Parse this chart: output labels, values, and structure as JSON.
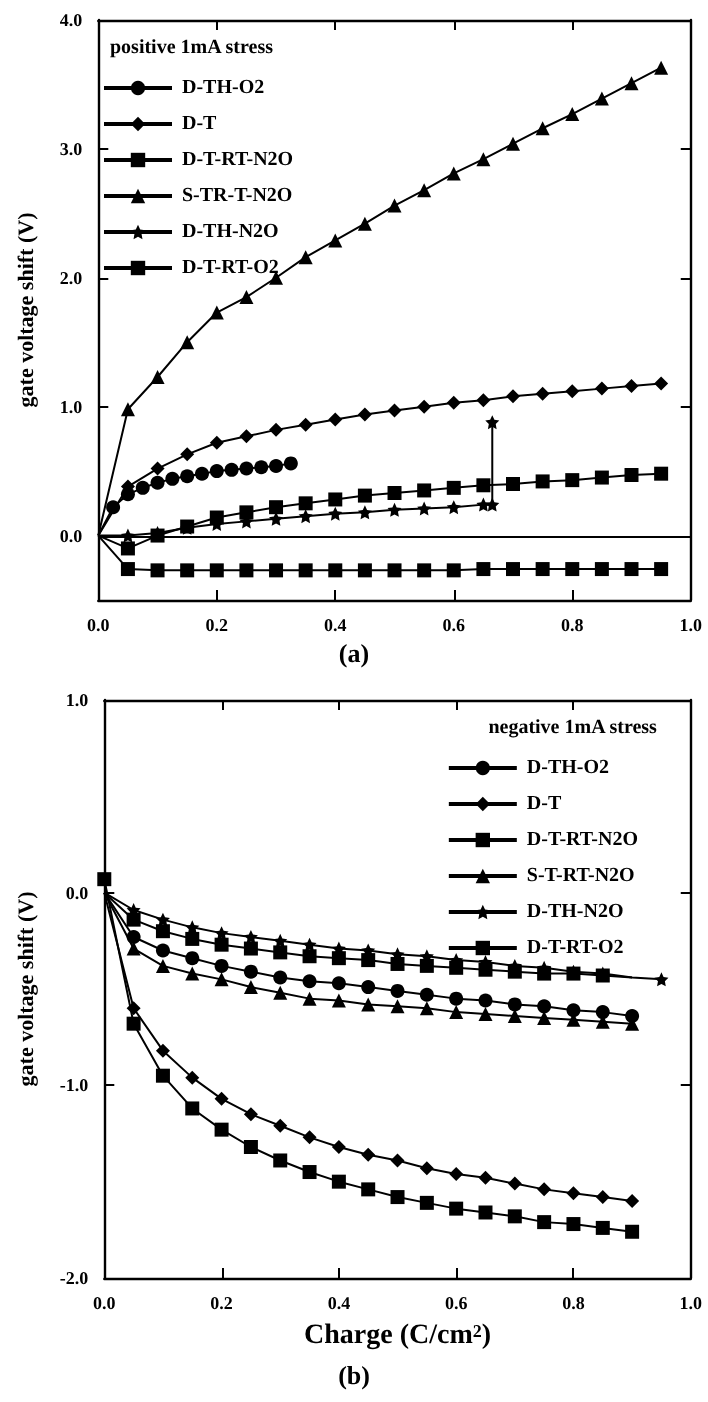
{
  "chart_data": [
    {
      "type": "line",
      "legend_title": "positive 1mA stress",
      "ylabel": "gate voltage shift (V)",
      "annotations": [
        "(a)"
      ],
      "legend": "top left",
      "grid": false,
      "xlim": [
        0,
        1
      ],
      "xticks": [
        {
          "value": 0,
          "label": "0.0"
        },
        {
          "value": 0.2,
          "label": "0.2"
        },
        {
          "value": 0.4,
          "label": "0.4"
        },
        {
          "value": 0.6,
          "label": "0.6"
        },
        {
          "value": 0.8,
          "label": "0.8"
        },
        {
          "value": 1,
          "label": "1.0"
        }
      ],
      "ylim": [
        -0.5,
        4
      ],
      "yticks": [
        {
          "value": 0,
          "label": "0.0"
        },
        {
          "value": 1,
          "label": "1.0"
        },
        {
          "value": 2,
          "label": "2.0"
        },
        {
          "value": 3,
          "label": "3.0"
        },
        {
          "value": 4,
          "label": "4.0"
        }
      ],
      "ref_lines": [
        {
          "axis": "y",
          "value": 0,
          "label": null,
          "color": "#000000"
        }
      ],
      "series": [
        {
          "name": "D-TH-O2",
          "color": "#000000",
          "marker": "circle",
          "x": [
            0,
            0.025,
            0.05,
            0.075,
            0.1,
            0.125,
            0.15,
            0.175,
            0.2,
            0.225,
            0.25,
            0.275,
            0.3,
            0.325
          ],
          "values": [
            0,
            0.22,
            0.32,
            0.37,
            0.41,
            0.44,
            0.46,
            0.48,
            0.5,
            0.51,
            0.52,
            0.53,
            0.54,
            0.56
          ]
        },
        {
          "name": "D-T",
          "color": "#000000",
          "marker": "diamond",
          "x": [
            0,
            0.05,
            0.1,
            0.15,
            0.2,
            0.25,
            0.3,
            0.35,
            0.4,
            0.45,
            0.5,
            0.55,
            0.6,
            0.65,
            0.7,
            0.75,
            0.8,
            0.85,
            0.9,
            0.95
          ],
          "values": [
            0,
            0.38,
            0.52,
            0.63,
            0.72,
            0.77,
            0.82,
            0.86,
            0.9,
            0.94,
            0.97,
            1.0,
            1.03,
            1.05,
            1.08,
            1.1,
            1.12,
            1.14,
            1.16,
            1.18
          ]
        },
        {
          "name": "D-T-RT-N2O",
          "color": "#000000",
          "marker": "square",
          "x": [
            0,
            0.05,
            0.1,
            0.15,
            0.2,
            0.25,
            0.3,
            0.35,
            0.4,
            0.45,
            0.5,
            0.55,
            0.6,
            0.65,
            0.7,
            0.75,
            0.8,
            0.85,
            0.9,
            0.95
          ],
          "values": [
            0,
            -0.26,
            -0.27,
            -0.27,
            -0.27,
            -0.27,
            -0.27,
            -0.27,
            -0.27,
            -0.27,
            -0.27,
            -0.27,
            -0.27,
            -0.26,
            -0.26,
            -0.26,
            -0.26,
            -0.26,
            -0.26,
            -0.26
          ]
        },
        {
          "name": "S-TR-T-N2O",
          "color": "#000000",
          "marker": "triangle",
          "x": [
            0,
            0.05,
            0.1,
            0.15,
            0.2,
            0.25,
            0.3,
            0.35,
            0.4,
            0.45,
            0.5,
            0.55,
            0.6,
            0.65,
            0.7,
            0.75,
            0.8,
            0.85,
            0.9,
            0.95
          ],
          "values": [
            0,
            0.98,
            1.23,
            1.5,
            1.73,
            1.85,
            2.0,
            2.16,
            2.29,
            2.42,
            2.56,
            2.68,
            2.81,
            2.92,
            3.04,
            3.16,
            3.27,
            3.39,
            3.51,
            3.63
          ]
        },
        {
          "name": "D-TH-N2O",
          "color": "#000000",
          "marker": "star",
          "x": [
            0,
            0.05,
            0.1,
            0.15,
            0.2,
            0.25,
            0.3,
            0.35,
            0.4,
            0.45,
            0.5,
            0.55,
            0.6,
            0.65,
            0.665,
            0.665
          ],
          "values": [
            0,
            0,
            0.02,
            0.06,
            0.09,
            0.11,
            0.13,
            0.15,
            0.17,
            0.18,
            0.2,
            0.21,
            0.22,
            0.24,
            0.24,
            0.88
          ]
        },
        {
          "name": "D-T-RT-O2",
          "color": "#000000",
          "marker": "square",
          "x": [
            0,
            0.05,
            0.1,
            0.15,
            0.2,
            0.25,
            0.3,
            0.35,
            0.4,
            0.45,
            0.5,
            0.55,
            0.6,
            0.65,
            0.7,
            0.75,
            0.8,
            0.85,
            0.9,
            0.95
          ],
          "values": [
            0,
            -0.1,
            0,
            0.07,
            0.14,
            0.18,
            0.22,
            0.25,
            0.28,
            0.31,
            0.33,
            0.35,
            0.37,
            0.39,
            0.4,
            0.42,
            0.43,
            0.45,
            0.47,
            0.48
          ]
        }
      ]
    },
    {
      "type": "line",
      "legend_title": "negative 1mA stress",
      "xlabel": "Charge (C/cm$^{2}$)",
      "ylabel": "gate voltage shift (V)",
      "annotations": [
        "(b)"
      ],
      "legend": "top right",
      "grid": false,
      "xlim": [
        0,
        1
      ],
      "xticks": [
        {
          "value": 0,
          "label": "0.0"
        },
        {
          "value": 0.2,
          "label": "0.2"
        },
        {
          "value": 0.4,
          "label": "0.4"
        },
        {
          "value": 0.6,
          "label": "0.6"
        },
        {
          "value": 0.8,
          "label": "0.8"
        },
        {
          "value": 1,
          "label": "1.0"
        }
      ],
      "ylim": [
        -2,
        1
      ],
      "yticks": [
        {
          "value": -2,
          "label": "-2.0"
        },
        {
          "value": -1,
          "label": "-1.0"
        },
        {
          "value": 0,
          "label": "0.0"
        },
        {
          "value": 1,
          "label": "1.0"
        }
      ],
      "series": [
        {
          "name": "D-TH-O2",
          "color": "#000000",
          "marker": "circle",
          "x": [
            0,
            0.05,
            0.1,
            0.15,
            0.2,
            0.25,
            0.3,
            0.35,
            0.4,
            0.45,
            0.5,
            0.55,
            0.6,
            0.65,
            0.7,
            0.75,
            0.8,
            0.85,
            0.9
          ],
          "values": [
            0,
            -0.23,
            -0.3,
            -0.34,
            -0.38,
            -0.41,
            -0.44,
            -0.46,
            -0.47,
            -0.49,
            -0.51,
            -0.53,
            -0.55,
            -0.56,
            -0.58,
            -0.59,
            -0.61,
            -0.62,
            -0.64
          ]
        },
        {
          "name": "D-T",
          "color": "#000000",
          "marker": "diamond",
          "x": [
            0,
            0.05,
            0.1,
            0.15,
            0.2,
            0.25,
            0.3,
            0.35,
            0.4,
            0.45,
            0.5,
            0.55,
            0.6,
            0.65,
            0.7,
            0.75,
            0.8,
            0.85,
            0.9
          ],
          "values": [
            0,
            -0.6,
            -0.82,
            -0.96,
            -1.07,
            -1.15,
            -1.21,
            -1.27,
            -1.32,
            -1.36,
            -1.39,
            -1.43,
            -1.46,
            -1.48,
            -1.51,
            -1.54,
            -1.56,
            -1.58,
            -1.6
          ]
        },
        {
          "name": "D-T-RT-N2O",
          "color": "#000000",
          "marker": "square",
          "x": [
            0,
            0.05,
            0.1,
            0.15,
            0.2,
            0.25,
            0.3,
            0.35,
            0.4,
            0.45,
            0.5,
            0.55,
            0.6,
            0.65,
            0.7,
            0.75,
            0.8,
            0.85,
            0.9
          ],
          "values": [
            0,
            -0.14,
            -0.2,
            -0.24,
            -0.27,
            -0.29,
            -0.31,
            -0.33,
            -0.34,
            -0.35,
            -0.37,
            -0.38,
            -0.39,
            -0.4,
            -0.41,
            -0.42,
            -0.42,
            -0.43,
            -0.44
          ]
        },
        {
          "name": "S-T-RT-N2O",
          "color": "#000000",
          "marker": "triangle",
          "x": [
            0,
            0.05,
            0.1,
            0.15,
            0.2,
            0.25,
            0.3,
            0.35,
            0.4,
            0.45,
            0.5,
            0.55,
            0.6,
            0.65,
            0.7,
            0.75,
            0.8,
            0.85,
            0.9
          ],
          "values": [
            0,
            -0.29,
            -0.38,
            -0.42,
            -0.45,
            -0.49,
            -0.52,
            -0.55,
            -0.56,
            -0.58,
            -0.59,
            -0.6,
            -0.62,
            -0.63,
            -0.64,
            -0.65,
            -0.66,
            -0.67,
            -0.68
          ]
        },
        {
          "name": "D-TH-N2O",
          "color": "#000000",
          "marker": "star",
          "x": [
            0,
            0.05,
            0.1,
            0.15,
            0.2,
            0.25,
            0.3,
            0.35,
            0.4,
            0.45,
            0.5,
            0.55,
            0.6,
            0.65,
            0.7,
            0.75,
            0.8,
            0.85,
            0.9,
            0.95
          ],
          "values": [
            0,
            -0.09,
            -0.14,
            -0.18,
            -0.21,
            -0.23,
            -0.25,
            -0.27,
            -0.29,
            -0.3,
            -0.32,
            -0.33,
            -0.35,
            -0.36,
            -0.38,
            -0.39,
            -0.41,
            -0.42,
            -0.44,
            -0.45
          ]
        },
        {
          "name": "D-T-RT-O2",
          "color": "#000000",
          "marker": "square",
          "x": [
            0,
            0.05,
            0.1,
            0.15,
            0.2,
            0.25,
            0.3,
            0.35,
            0.4,
            0.45,
            0.5,
            0.55,
            0.6,
            0.65,
            0.7,
            0.75,
            0.8,
            0.85,
            0.9
          ],
          "values": [
            0.07,
            -0.68,
            -0.95,
            -1.12,
            -1.23,
            -1.32,
            -1.39,
            -1.45,
            -1.5,
            -1.54,
            -1.58,
            -1.61,
            -1.64,
            -1.66,
            -1.68,
            -1.71,
            -1.72,
            -1.74,
            -1.76
          ]
        }
      ]
    }
  ]
}
